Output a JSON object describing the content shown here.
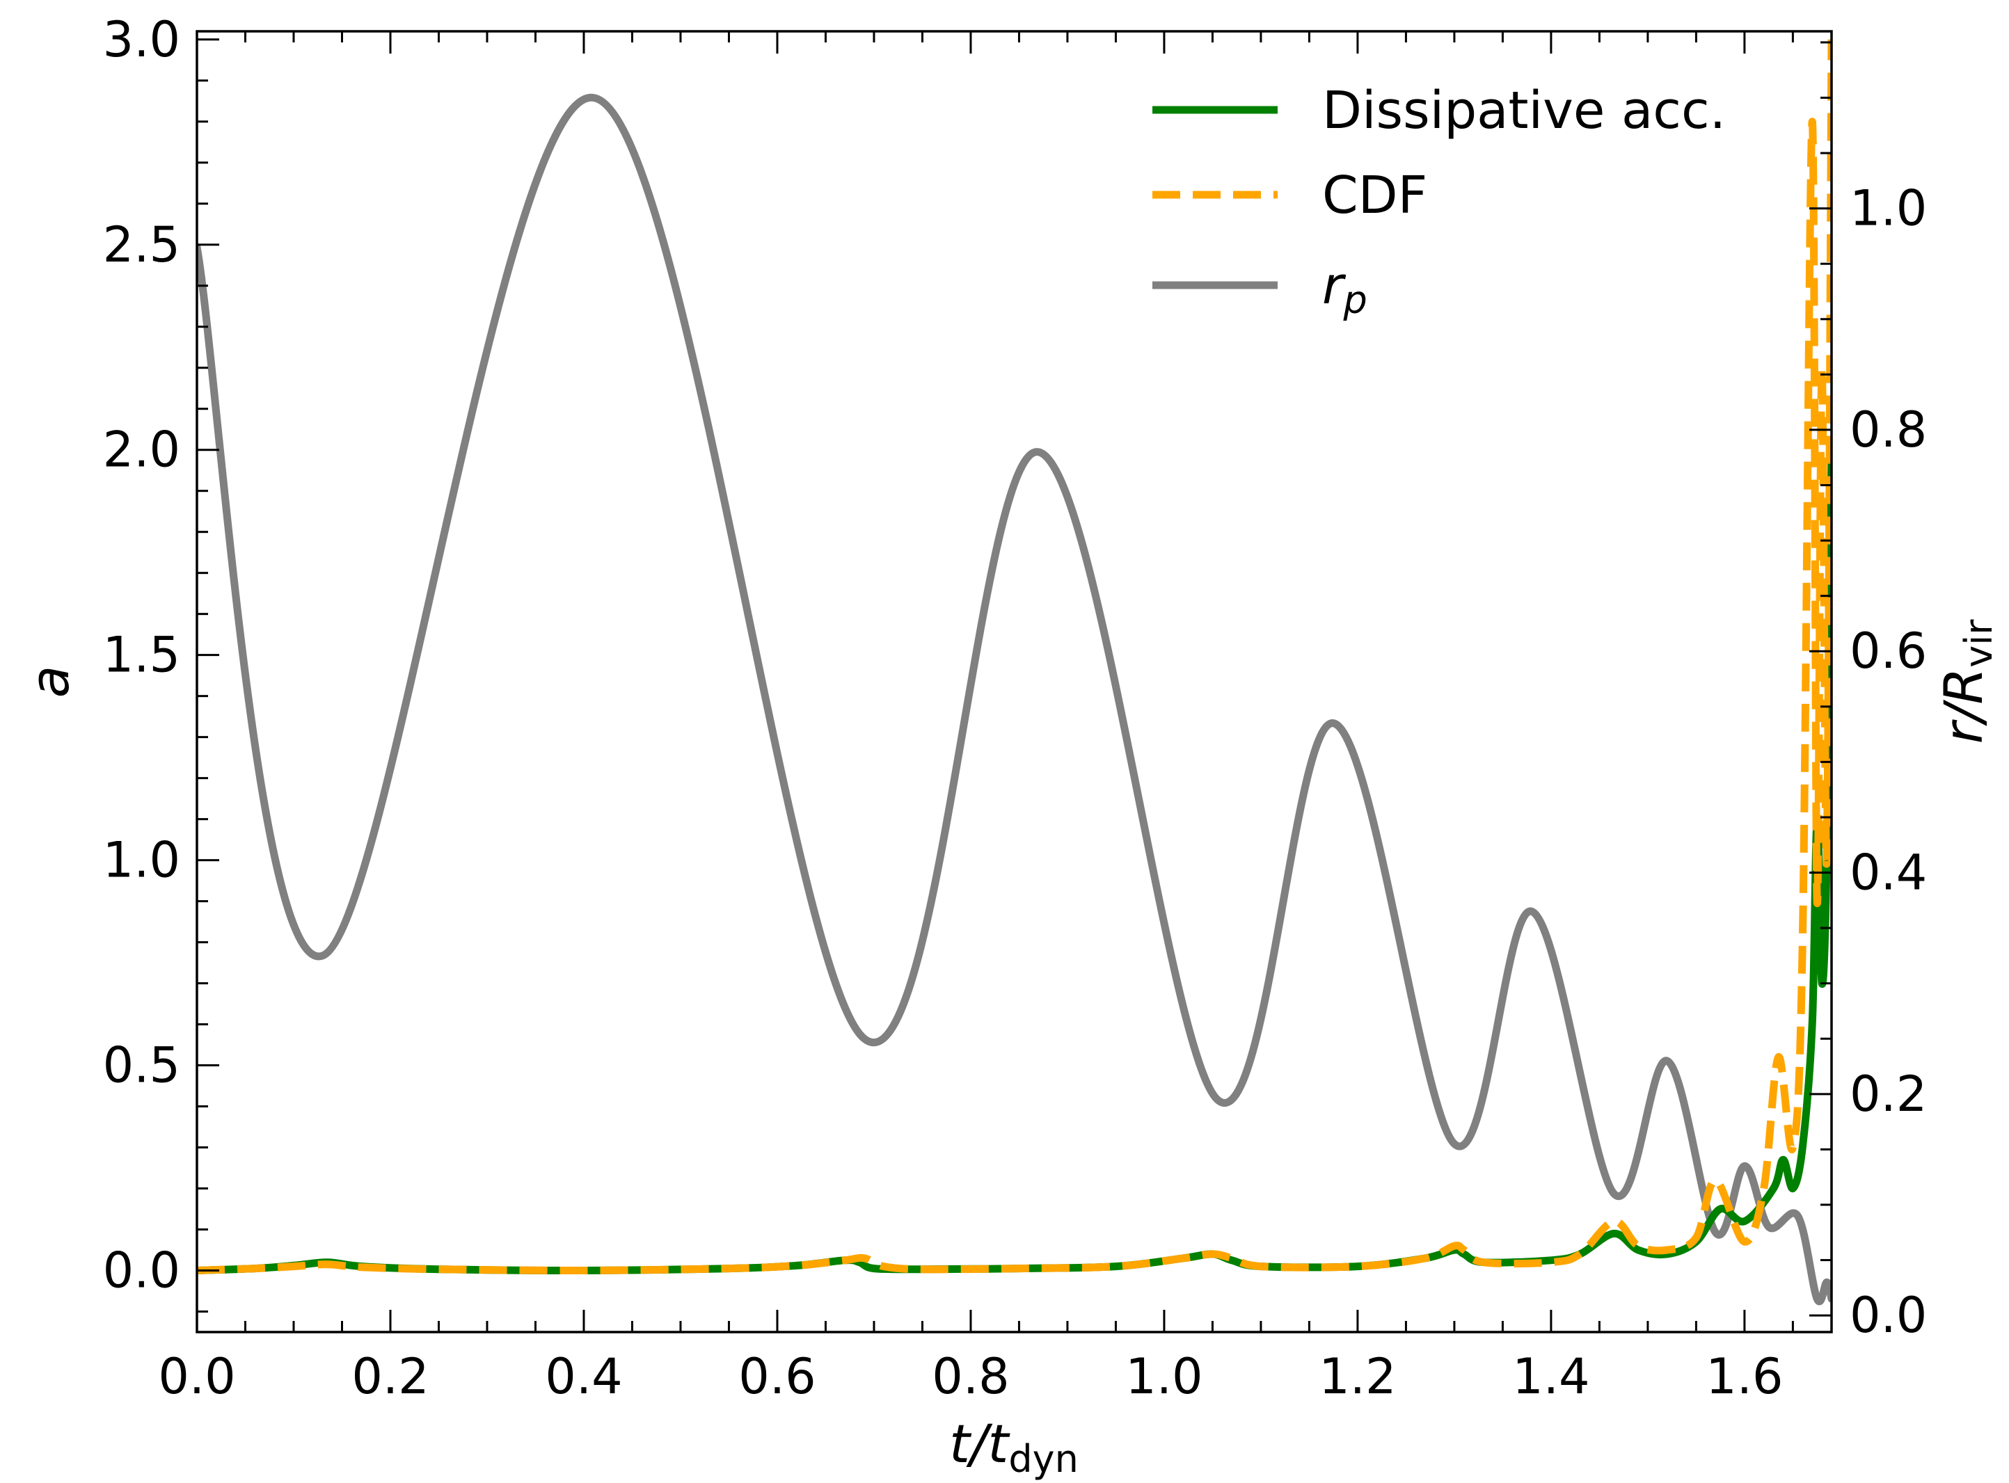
{
  "chart_data": {
    "type": "line",
    "title": "",
    "xlabel": {
      "main": "t/t",
      "sub": "dyn"
    },
    "ylabel_left": "a",
    "ylabel_right": {
      "main": "r/R",
      "sub": "vir"
    },
    "xlim": [
      0.0,
      1.69
    ],
    "ylim_left": [
      -0.15,
      3.02
    ],
    "ylim_right": [
      -0.015,
      1.16
    ],
    "x_ticks": [
      "0.0",
      "0.2",
      "0.4",
      "0.6",
      "0.8",
      "1.0",
      "1.2",
      "1.4",
      "1.6"
    ],
    "x_tick_values": [
      0.0,
      0.2,
      0.4,
      0.6,
      0.8,
      1.0,
      1.2,
      1.4,
      1.6
    ],
    "y_left_ticks": [
      "0.0",
      "0.5",
      "1.0",
      "1.5",
      "2.0",
      "2.5",
      "3.0"
    ],
    "y_left_tick_values": [
      0.0,
      0.5,
      1.0,
      1.5,
      2.0,
      2.5,
      3.0
    ],
    "y_right_ticks": [
      "0.0",
      "0.2",
      "0.4",
      "0.6",
      "0.8",
      "1.0"
    ],
    "y_right_tick_values": [
      0.0,
      0.2,
      0.4,
      0.6,
      0.8,
      1.0
    ],
    "grid": false,
    "legend_position": "top-right",
    "series": [
      {
        "name": "Dissipative acc.",
        "axis": "left",
        "style": "solid",
        "color": "#008000",
        "x": [
          0.0,
          0.06,
          0.1,
          0.135,
          0.17,
          0.25,
          0.4,
          0.55,
          0.62,
          0.67,
          0.685,
          0.7,
          0.75,
          0.85,
          0.95,
          1.02,
          1.05,
          1.07,
          1.1,
          1.2,
          1.27,
          1.3,
          1.31,
          1.33,
          1.4,
          1.43,
          1.465,
          1.49,
          1.52,
          1.55,
          1.575,
          1.6,
          1.63,
          1.64,
          1.65,
          1.66,
          1.67,
          1.675,
          1.68,
          1.685,
          1.69
        ],
        "y": [
          0.0,
          0.005,
          0.012,
          0.02,
          0.01,
          0.003,
          0.0,
          0.005,
          0.012,
          0.025,
          0.02,
          0.005,
          0.003,
          0.005,
          0.01,
          0.03,
          0.04,
          0.025,
          0.01,
          0.01,
          0.03,
          0.05,
          0.04,
          0.02,
          0.025,
          0.04,
          0.09,
          0.05,
          0.04,
          0.07,
          0.15,
          0.12,
          0.2,
          0.27,
          0.2,
          0.3,
          0.6,
          1.1,
          0.7,
          1.0,
          2.0
        ]
      },
      {
        "name": "CDF",
        "axis": "left",
        "style": "dashed",
        "color": "#ffa500",
        "x": [
          0.0,
          0.06,
          0.1,
          0.135,
          0.17,
          0.25,
          0.4,
          0.55,
          0.62,
          0.67,
          0.69,
          0.71,
          0.75,
          0.85,
          0.95,
          1.02,
          1.05,
          1.07,
          1.1,
          1.2,
          1.27,
          1.3,
          1.31,
          1.33,
          1.4,
          1.43,
          1.465,
          1.49,
          1.52,
          1.55,
          1.57,
          1.6,
          1.62,
          1.635,
          1.65,
          1.66,
          1.67,
          1.675,
          1.68,
          1.685,
          1.69
        ],
        "y": [
          0.0,
          0.005,
          0.01,
          0.015,
          0.008,
          0.003,
          0.0,
          0.005,
          0.012,
          0.025,
          0.03,
          0.01,
          0.003,
          0.005,
          0.01,
          0.03,
          0.04,
          0.03,
          0.01,
          0.01,
          0.03,
          0.06,
          0.05,
          0.02,
          0.02,
          0.04,
          0.12,
          0.06,
          0.05,
          0.08,
          0.22,
          0.07,
          0.2,
          0.52,
          0.3,
          0.8,
          2.8,
          0.9,
          2.2,
          1.0,
          3.0
        ]
      },
      {
        "name": "r_p",
        "name_main": "r",
        "name_sub": "p",
        "axis": "right",
        "style": "solid",
        "color": "#808080",
        "x": [
          0.0,
          0.13,
          0.41,
          0.69,
          0.87,
          1.055,
          1.175,
          1.3,
          1.38,
          1.465,
          1.52,
          1.57,
          1.6,
          1.625,
          1.655,
          1.675,
          1.685,
          1.69
        ],
        "y": [
          0.965,
          0.325,
          1.1,
          0.25,
          0.78,
          0.195,
          0.535,
          0.155,
          0.365,
          0.11,
          0.23,
          0.075,
          0.135,
          0.08,
          0.09,
          0.015,
          0.03,
          0.015
        ]
      }
    ]
  }
}
